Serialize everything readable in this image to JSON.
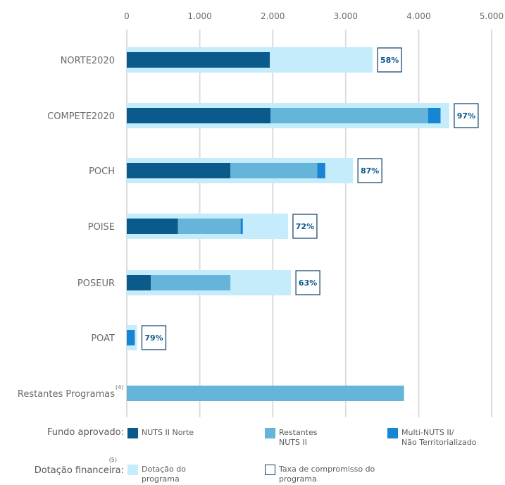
{
  "chart_data": {
    "type": "bar",
    "orientation": "horizontal",
    "stacked": true,
    "x_ticks": [
      "0",
      "1.000",
      "2.000",
      "3.000",
      "4.000",
      "5.000"
    ],
    "xlim": [
      0,
      5000
    ],
    "grid": true,
    "categories": [
      "NORTE2020",
      "COMPETE2020",
      "POCH",
      "POISE",
      "POSEUR",
      "POAT",
      "Restantes Programas"
    ],
    "category_notes": [
      "",
      "",
      "",
      "",
      "",
      "",
      "(4)"
    ],
    "series": [
      {
        "name": "NUTS II Norte",
        "color": "#0b5a8c",
        "values": [
          1960,
          1970,
          1420,
          700,
          330,
          0,
          0
        ]
      },
      {
        "name": "Restantes NUTS II",
        "color": "#65b4da",
        "values": [
          0,
          2160,
          1190,
          860,
          1090,
          0,
          3800
        ]
      },
      {
        "name": "Multi-NUTS II/ Não Territorializado",
        "color": "#1685d3",
        "values": [
          0,
          170,
          110,
          30,
          0,
          110,
          0
        ]
      }
    ],
    "dotacao": {
      "name": "Dotação do programa",
      "color": "#c5ecfb",
      "values": [
        3370,
        4420,
        3100,
        2210,
        2250,
        140,
        null
      ]
    },
    "taxa_compromisso": {
      "name": "Taxa de compromisso do programa",
      "values": [
        "58%",
        "97%",
        "87%",
        "72%",
        "63%",
        "79%",
        null
      ]
    }
  },
  "legend": {
    "fundo_title": "Fundo aprovado:",
    "dotacao_title": "Dotação financeira:",
    "dotacao_note": "(5)",
    "items": {
      "nuts_norte": "NUTS II Norte",
      "restantes": "Restantes\nNUTS II",
      "multi": "Multi-NUTS II/\nNão Territorializado",
      "dotacao": "Dotação do\nprograma",
      "taxa": "Taxa de compromisso do\nprograma"
    },
    "colors": {
      "nuts_norte": "#0b5a8c",
      "restantes": "#65b4da",
      "multi": "#1685d3",
      "dotacao": "#c5ecfb",
      "taxa_border": "#0b3d66"
    }
  }
}
